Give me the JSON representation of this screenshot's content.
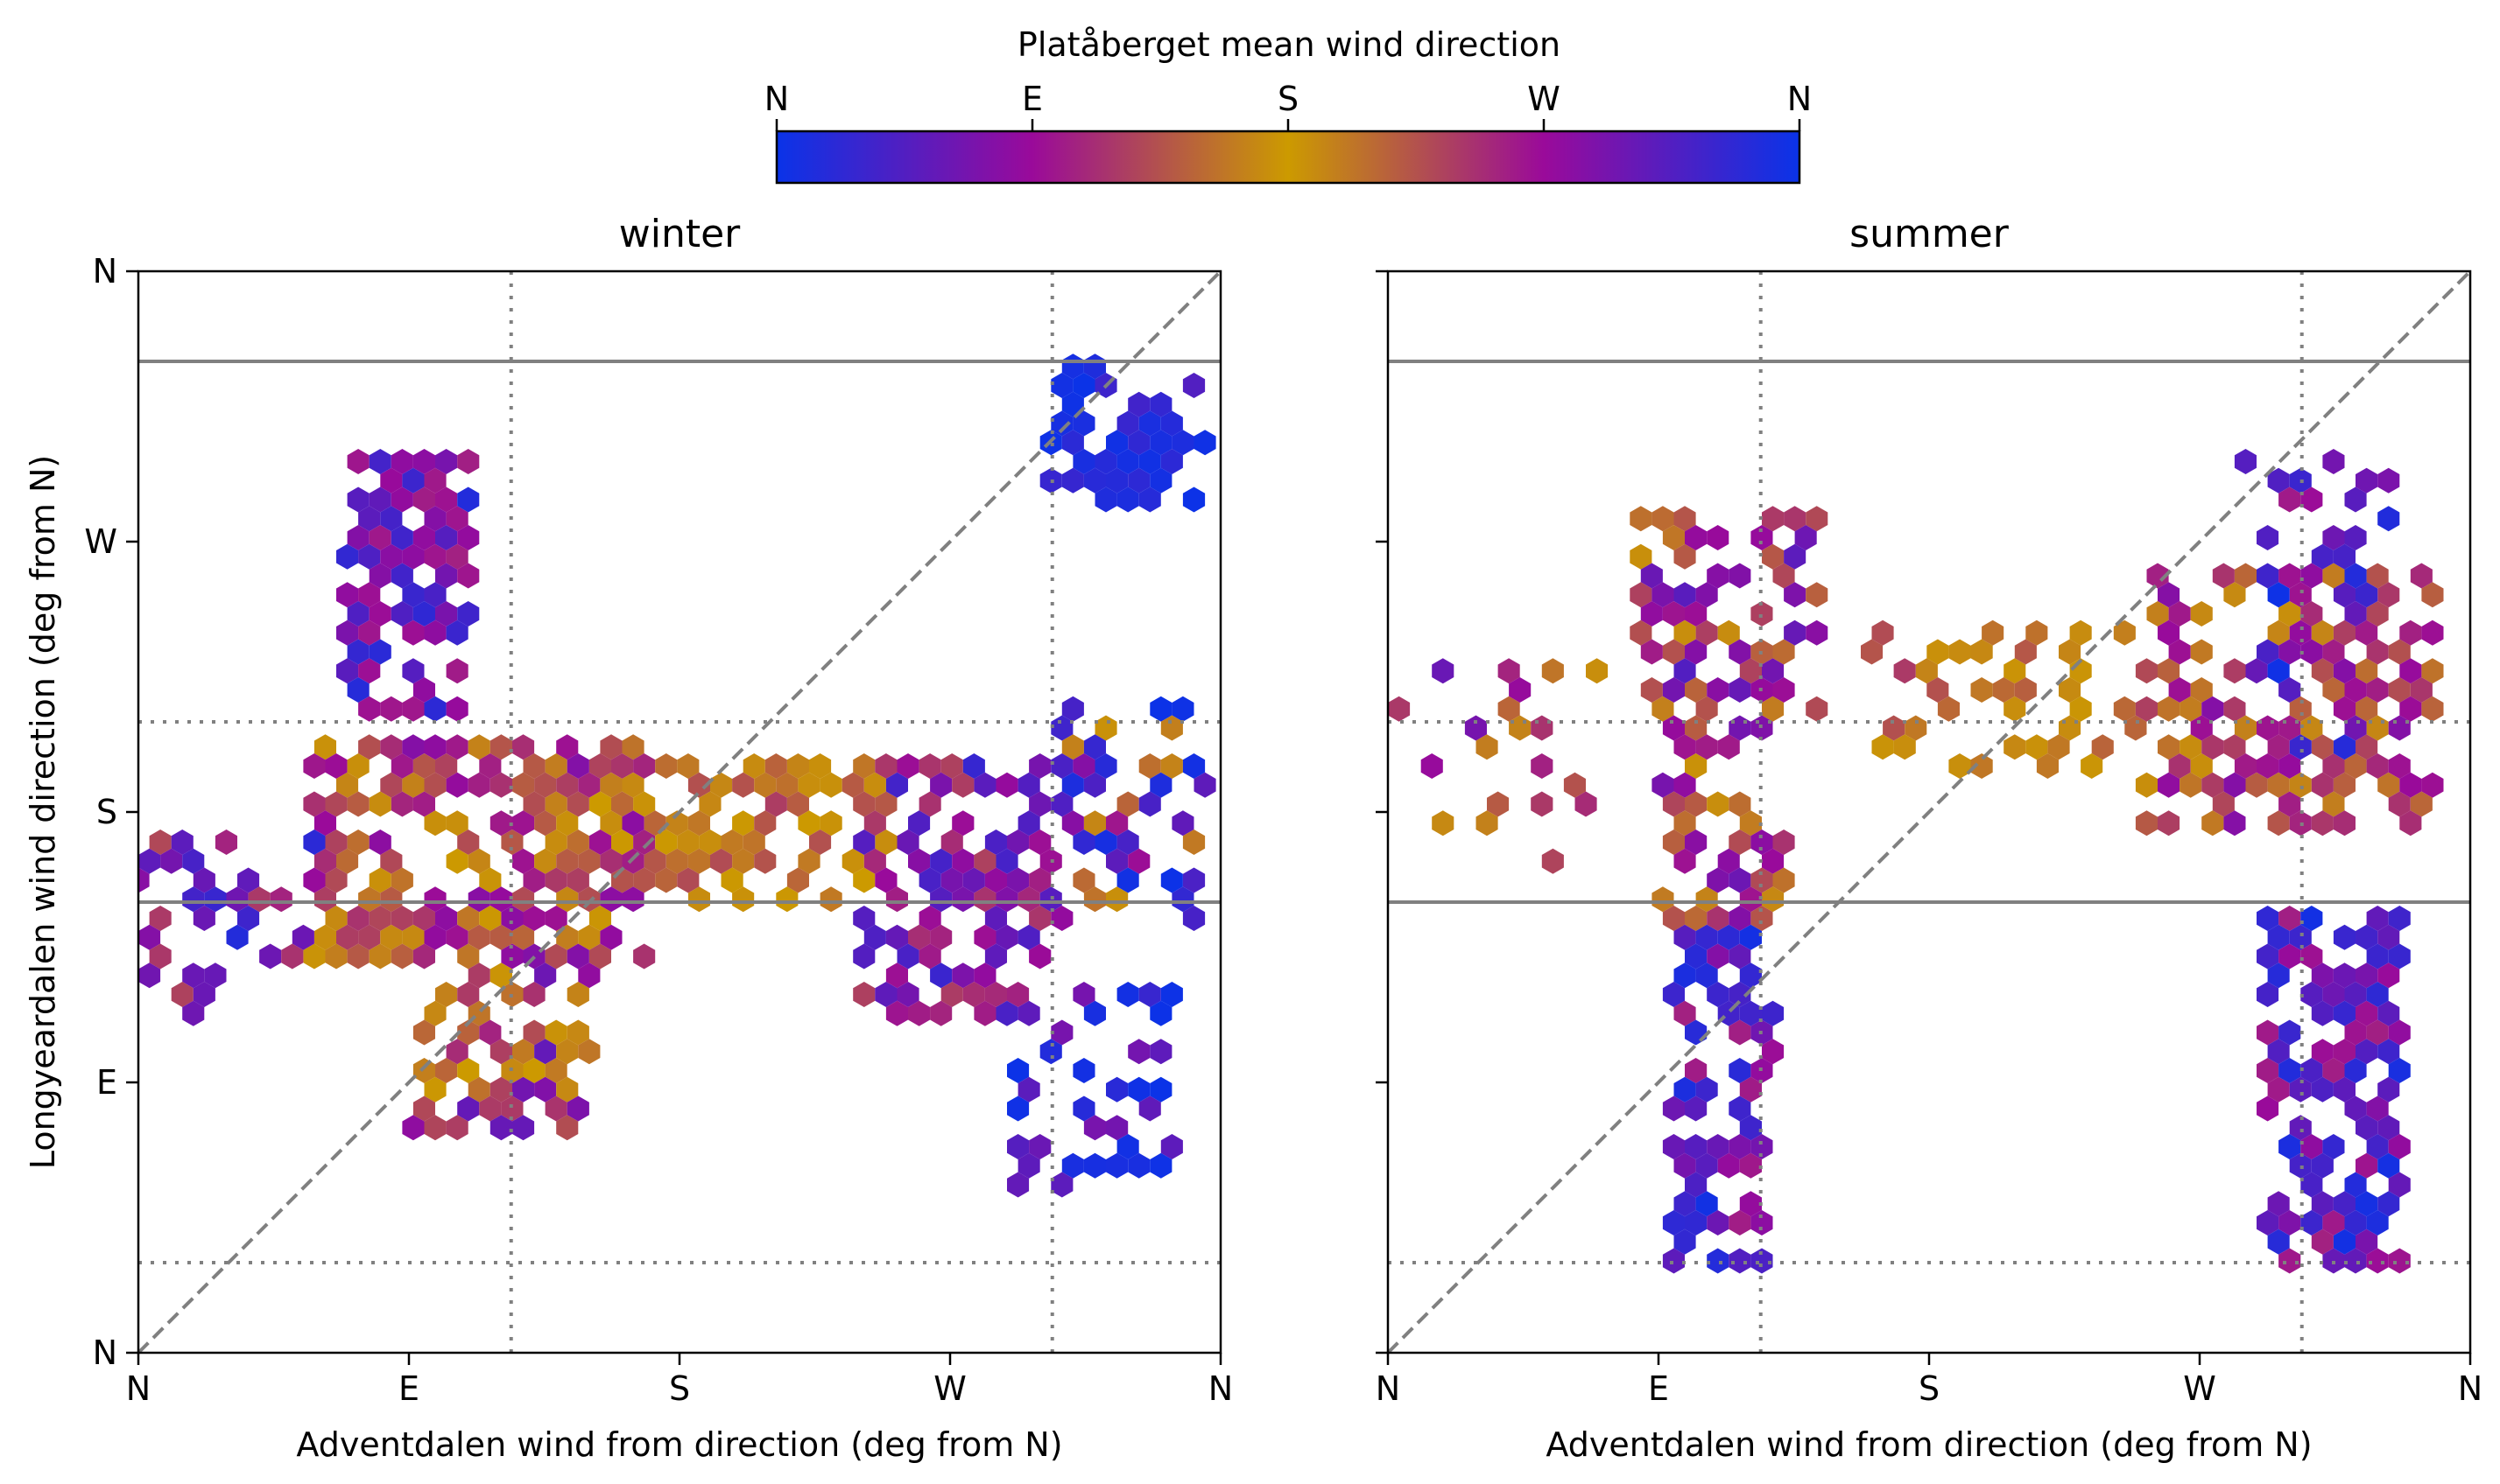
{
  "figure": {
    "colorbar": {
      "label": "Platåberget mean wind direction",
      "ticks": [
        {
          "value": 0,
          "label": "N"
        },
        {
          "value": 90,
          "label": "E"
        },
        {
          "value": 180,
          "label": "S"
        },
        {
          "value": 270,
          "label": "W"
        },
        {
          "value": 360,
          "label": "N"
        }
      ],
      "colormap": [
        "#0a33e8",
        "#9a0a9a",
        "#cc9a00",
        "#9a0a9a",
        "#0a33e8"
      ],
      "range": [
        0,
        360
      ]
    }
  },
  "chart_data": [
    {
      "type": "hexbin",
      "title": "winter",
      "xlabel": "Adventdalen wind from direction (deg from N)",
      "ylabel": "Longyeardalen wind direction (deg from N)",
      "xlim": [
        0,
        360
      ],
      "ylim": [
        0,
        360
      ],
      "xticks": [
        {
          "value": 0,
          "label": "N"
        },
        {
          "value": 90,
          "label": "E"
        },
        {
          "value": 180,
          "label": "S"
        },
        {
          "value": 270,
          "label": "W"
        },
        {
          "value": 360,
          "label": "N"
        }
      ],
      "yticks": [
        {
          "value": 0,
          "label": "N"
        },
        {
          "value": 90,
          "label": "E"
        },
        {
          "value": 180,
          "label": "S"
        },
        {
          "value": 270,
          "label": "W"
        },
        {
          "value": 360,
          "label": "N"
        }
      ],
      "reference_lines": {
        "diagonal": true,
        "horizontal_solid": [
          330,
          150
        ],
        "horizontal_dotted": [
          210,
          30
        ],
        "vertical_dotted": [
          124,
          304
        ]
      },
      "clusters": [
        {
          "x": [
            68,
            112
          ],
          "y": [
            210,
            300
          ],
          "colors": [
            90,
            60,
            270,
            330
          ],
          "density": 0.75
        },
        {
          "x": [
            55,
            170
          ],
          "y": [
            130,
            205
          ],
          "colors": [
            120,
            150,
            180,
            230,
            270
          ],
          "density": 0.7
        },
        {
          "x": [
            90,
            150
          ],
          "y": [
            70,
            130
          ],
          "colors": [
            240,
            200,
            170,
            290
          ],
          "density": 0.6
        },
        {
          "x": [
            0,
            60
          ],
          "y": [
            110,
            170
          ],
          "colors": [
            290,
            310,
            240,
            330
          ],
          "density": 0.35
        },
        {
          "x": [
            150,
            250
          ],
          "y": [
            150,
            200
          ],
          "colors": [
            160,
            180,
            200,
            230
          ],
          "density": 0.5
        },
        {
          "x": [
            240,
            300
          ],
          "y": [
            110,
            200
          ],
          "colors": [
            300,
            270,
            320,
            250
          ],
          "density": 0.65
        },
        {
          "x": [
            300,
            355
          ],
          "y": [
            140,
            215
          ],
          "colors": [
            330,
            320,
            270,
            350,
            200
          ],
          "density": 0.5
        },
        {
          "x": [
            300,
            355
          ],
          "y": [
            280,
            330
          ],
          "colors": [
            355,
            345,
            5,
            330
          ],
          "density": 0.55
        },
        {
          "x": [
            290,
            345
          ],
          "y": [
            50,
            120
          ],
          "colors": [
            355,
            345,
            300
          ],
          "density": 0.35
        }
      ]
    },
    {
      "type": "hexbin",
      "title": "summer",
      "xlabel": "Adventdalen wind from direction (deg from N)",
      "ylabel": "",
      "xlim": [
        0,
        360
      ],
      "ylim": [
        0,
        360
      ],
      "xticks": [
        {
          "value": 0,
          "label": "N"
        },
        {
          "value": 90,
          "label": "E"
        },
        {
          "value": 180,
          "label": "S"
        },
        {
          "value": 270,
          "label": "W"
        },
        {
          "value": 360,
          "label": "N"
        }
      ],
      "yticks": [
        {
          "value": 0,
          "label": ""
        },
        {
          "value": 90,
          "label": ""
        },
        {
          "value": 180,
          "label": ""
        },
        {
          "value": 270,
          "label": ""
        },
        {
          "value": 360,
          "label": ""
        }
      ],
      "reference_lines": {
        "diagonal": true,
        "horizontal_solid": [
          330,
          150
        ],
        "horizontal_dotted": [
          210,
          30
        ],
        "vertical_dotted": [
          124,
          304
        ]
      },
      "clusters": [
        {
          "x": [
            84,
            145
          ],
          "y": [
            210,
            280
          ],
          "colors": [
            270,
            230,
            300,
            200
          ],
          "density": 0.6
        },
        {
          "x": [
            90,
            135
          ],
          "y": [
            140,
            210
          ],
          "colors": [
            230,
            200,
            270,
            290
          ],
          "density": 0.65
        },
        {
          "x": [
            95,
            130
          ],
          "y": [
            30,
            140
          ],
          "colors": [
            290,
            320,
            270,
            340
          ],
          "density": 0.6
        },
        {
          "x": [
            150,
            250
          ],
          "y": [
            190,
            240
          ],
          "colors": [
            180,
            200,
            230,
            160
          ],
          "density": 0.4
        },
        {
          "x": [
            250,
            350
          ],
          "y": [
            170,
            260
          ],
          "colors": [
            200,
            230,
            250,
            270
          ],
          "density": 0.55
        },
        {
          "x": [
            285,
            335
          ],
          "y": [
            200,
            300
          ],
          "colors": [
            330,
            355,
            300,
            270
          ],
          "density": 0.45
        },
        {
          "x": [
            290,
            340
          ],
          "y": [
            30,
            150
          ],
          "colors": [
            300,
            320,
            340,
            270
          ],
          "density": 0.7
        },
        {
          "x": [
            0,
            70
          ],
          "y": [
            160,
            230
          ],
          "colors": [
            230,
            260,
            200,
            300
          ],
          "density": 0.15
        }
      ]
    }
  ]
}
